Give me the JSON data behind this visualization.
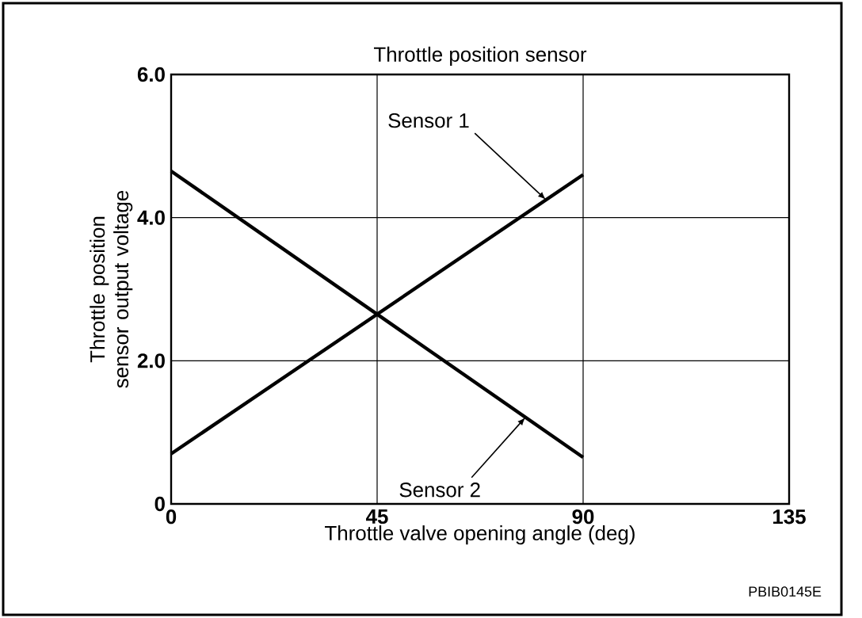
{
  "chart_data": {
    "type": "line",
    "title": "Throttle position sensor",
    "xlabel": "Throttle valve opening angle (deg)",
    "ylabel": "Throttle position sensor output voltage",
    "x": [
      0,
      90
    ],
    "series": [
      {
        "name": "Sensor 1",
        "color": "#000000",
        "values": [
          0.7,
          4.6
        ]
      },
      {
        "name": "Sensor 2",
        "color": "#000000",
        "values": [
          4.65,
          0.65
        ]
      }
    ],
    "xlim": [
      0,
      135
    ],
    "xticks": [
      0,
      45,
      90,
      135
    ],
    "ylim": [
      0,
      6
    ],
    "yticks": [
      0,
      {
        "value": 2,
        "label": "2.0"
      },
      {
        "value": 4,
        "label": "4.0"
      },
      {
        "value": 6,
        "label": "6.0"
      }
    ],
    "grid": true,
    "marker": "none",
    "line_style": "solid",
    "annotations": [
      "PBIB0145E"
    ]
  }
}
